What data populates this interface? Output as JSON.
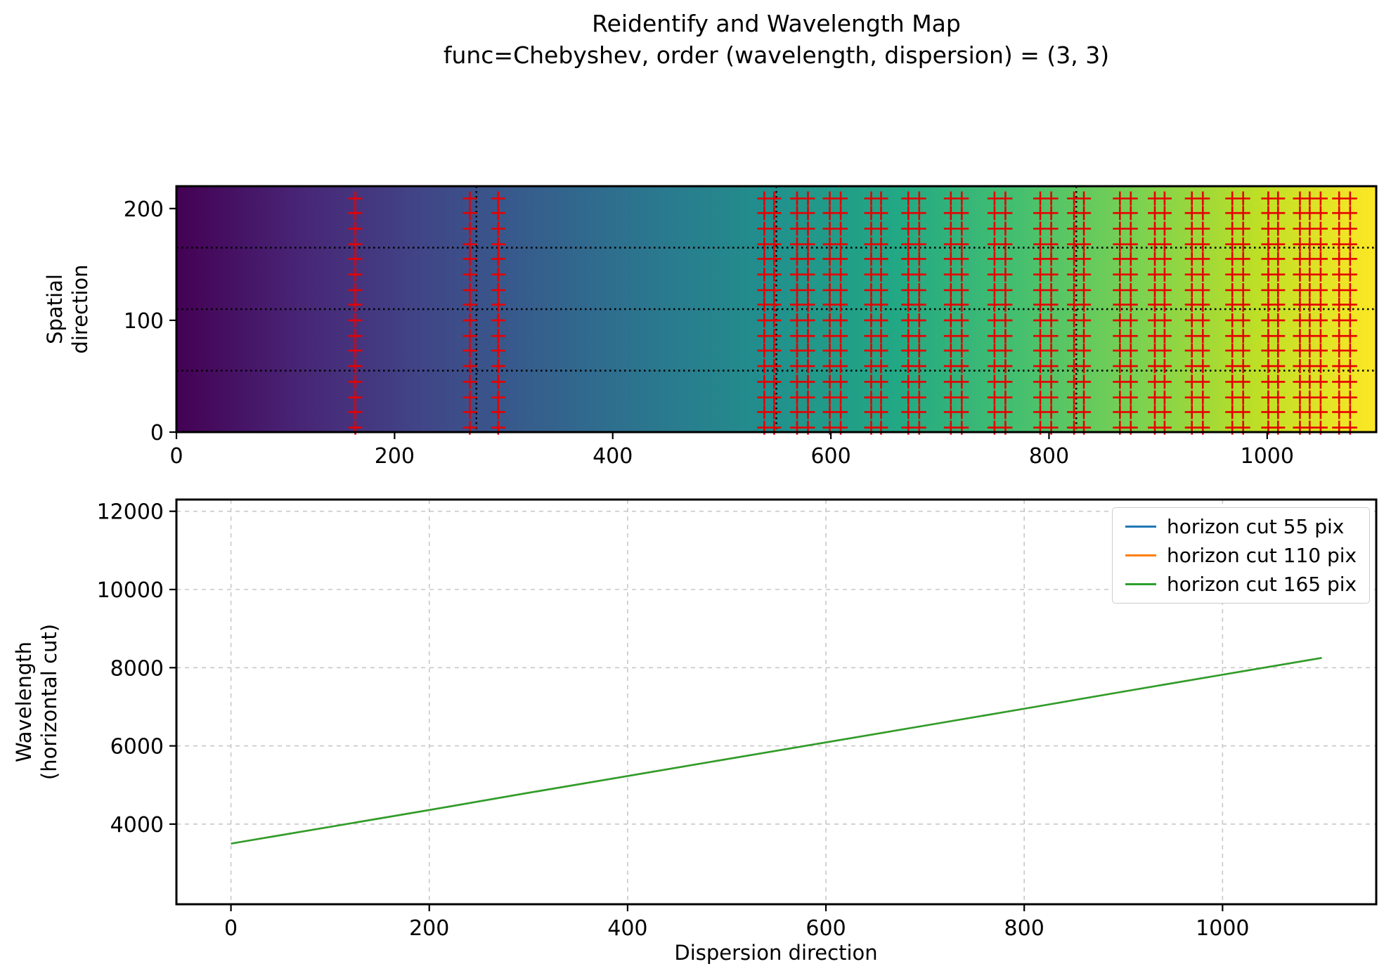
{
  "title": {
    "line1": "Reidentify and Wavelength Map",
    "line2": "func=Chebyshev, order (wavelength, dispersion) = (3, 3)"
  },
  "colors": {
    "marker": "#e60000",
    "cut_line": "#000000",
    "grid": "#c8c8c8",
    "frame": "#000000",
    "legend_border": "#cccccc",
    "viridis_stops": [
      "#440154",
      "#482475",
      "#414487",
      "#355f8d",
      "#2a788e",
      "#21918c",
      "#22a884",
      "#44bf70",
      "#7ad151",
      "#bddf26",
      "#fde725"
    ]
  },
  "chart_data": [
    {
      "type": "heatmap",
      "name": "wavelength-map",
      "ylabel": "Spatial\ndirection",
      "xlabel": "",
      "xlim": [
        0,
        1100
      ],
      "ylim": [
        0,
        220
      ],
      "xticks": [
        0,
        200,
        400,
        600,
        800,
        1000
      ],
      "yticks": [
        0,
        100,
        200
      ],
      "colormap": "viridis, wavelength increases left to right",
      "horizontal_cuts_y": [
        55,
        110,
        165
      ],
      "vertical_cuts_x": [
        275,
        550,
        825
      ],
      "cut_line_style": "black dotted",
      "marker_symbol": "+",
      "identified_line_x": [
        164,
        269,
        295,
        539,
        548,
        569,
        579,
        599,
        609,
        637,
        646,
        671,
        681,
        710,
        720,
        750,
        760,
        792,
        802,
        823,
        832,
        865,
        875,
        897,
        906,
        931,
        941,
        968,
        978,
        1001,
        1010,
        1030,
        1039,
        1049,
        1066,
        1076
      ],
      "identified_marker_y": [
        4,
        18,
        31,
        45,
        59,
        73,
        86,
        100,
        114,
        127,
        141,
        155,
        168,
        182,
        196,
        209
      ]
    },
    {
      "type": "line",
      "name": "wavelength-solution",
      "xlabel": "Dispersion direction",
      "ylabel": "Wavelength\n(horizontal cut)",
      "xlim": [
        -55,
        1155
      ],
      "ylim": [
        1950,
        12300
      ],
      "xticks": [
        0,
        200,
        400,
        600,
        800,
        1000
      ],
      "yticks": [
        4000,
        6000,
        8000,
        10000,
        12000
      ],
      "grid": true,
      "legend_position": "upper right",
      "x": [
        0,
        100,
        200,
        300,
        400,
        500,
        600,
        700,
        800,
        900,
        1000,
        1100
      ],
      "series": [
        {
          "name": "horizon cut 55 pix",
          "color": "#1f77b4",
          "values": [
            3500,
            3930,
            4360,
            4800,
            5230,
            5660,
            6090,
            6520,
            6950,
            7390,
            7820,
            8250
          ]
        },
        {
          "name": "horizon cut 110 pix",
          "color": "#ff7f0e",
          "values": [
            3500,
            3930,
            4360,
            4800,
            5230,
            5660,
            6090,
            6520,
            6950,
            7390,
            7820,
            8250
          ]
        },
        {
          "name": "horizon cut 165 pix",
          "color": "#2ca02c",
          "values": [
            3500,
            3930,
            4360,
            4800,
            5230,
            5660,
            6090,
            6520,
            6950,
            7390,
            7820,
            8250
          ]
        }
      ]
    }
  ]
}
